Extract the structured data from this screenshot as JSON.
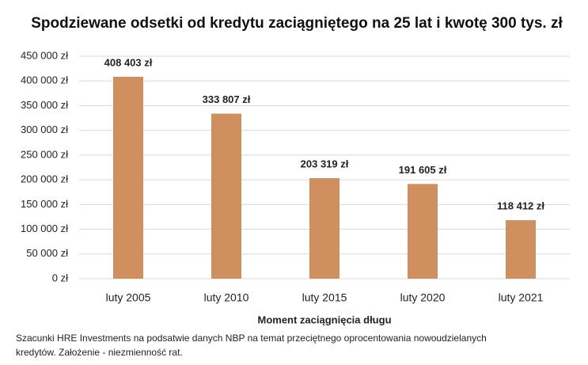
{
  "chart_data": {
    "type": "bar",
    "title": "Spodziewane odsetki od kredytu zaciągniętego na 25 lat i kwotę 300 tys. zł",
    "categories": [
      "luty 2005",
      "luty 2010",
      "luty 2015",
      "luty 2020",
      "luty 2021"
    ],
    "values": [
      408403,
      333807,
      203319,
      191605,
      118412
    ],
    "value_labels": [
      "408 403 zł",
      "333 807 zł",
      "203 319 zł",
      "191 605 zł",
      "118 412 zł"
    ],
    "color": "#cf8f5f",
    "xlabel": "Moment zaciągnięcia długu",
    "ylim": [
      0,
      450000
    ],
    "yticks": [
      {
        "value": 0,
        "label": "0 zł"
      },
      {
        "value": 50000,
        "label": "50 000 zł"
      },
      {
        "value": 100000,
        "label": "100 000 zł"
      },
      {
        "value": 150000,
        "label": "150 000 zł"
      },
      {
        "value": 200000,
        "label": "200 000 zł"
      },
      {
        "value": 250000,
        "label": "250 000 zł"
      },
      {
        "value": 300000,
        "label": "300 000 zł"
      },
      {
        "value": 350000,
        "label": "350 000 zł"
      },
      {
        "value": 400000,
        "label": "400 000 zł"
      },
      {
        "value": 450000,
        "label": "450 000 zł"
      }
    ],
    "grid": true,
    "footnote": [
      "Szacunki HRE Investments na podsatwie danych NBP na temat przeciętnego oprocentowania nowoudzielanych",
      "kredytów. Założenie - niezmienność rat."
    ]
  }
}
